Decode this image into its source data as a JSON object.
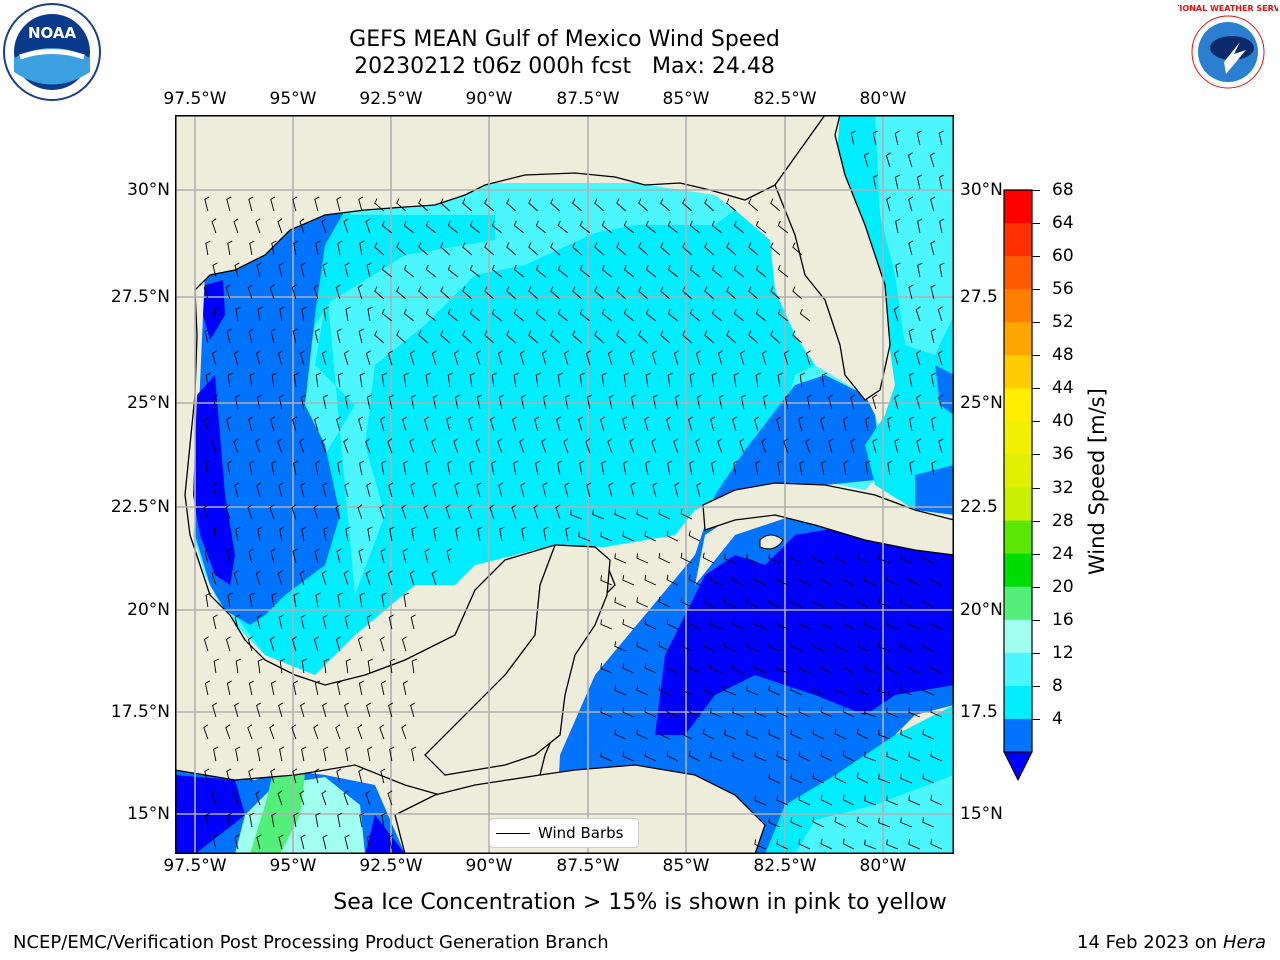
{
  "title": {
    "line1": "GEFS MEAN Gulf of Mexico Wind Speed",
    "line2": "20230212 t06z 000h fcst   Max: 24.48"
  },
  "axes": {
    "lon_labels": [
      "97.5°W",
      "95°W",
      "92.5°W",
      "90°W",
      "87.5°W",
      "85°W",
      "82.5°W",
      "80°W"
    ],
    "lat_labels_left": [
      "30°N",
      "27.5°N",
      "25°N",
      "22.5°N",
      "20°N",
      "17.5°N",
      "15°N"
    ],
    "lat_labels_right": [
      "30°N",
      "27.5",
      "25°N",
      "22.5",
      "20°N",
      "17.5",
      "15°N"
    ]
  },
  "colorbar": {
    "title": "Wind Speed [m/s]",
    "levels": [
      "68",
      "64",
      "60",
      "56",
      "52",
      "48",
      "44",
      "40",
      "36",
      "32",
      "28",
      "24",
      "20",
      "16",
      "12",
      "8",
      "4"
    ],
    "colors": [
      "#ff0000",
      "#ff3000",
      "#ff5a00",
      "#ff8000",
      "#ffa500",
      "#ffcc00",
      "#ffee00",
      "#f0f000",
      "#e0f000",
      "#c8f000",
      "#5be800",
      "#00dd00",
      "#52f07a",
      "#a0ffee",
      "#4cf6ff",
      "#00ecff",
      "#0073ff"
    ],
    "under_color": "#0000ff"
  },
  "legend": {
    "label": "Wind Barbs"
  },
  "caption": "Sea Ice Concentration > 15% is shown in pink to yellow",
  "footer": {
    "left": "NCEP/EMC/Verification Post Processing Product Generation Branch",
    "right_prefix": "14 Feb 2023 on",
    "right_italic": "Hera"
  },
  "logos": {
    "left": "NOAA",
    "right": "NATIONAL WEATHER SERVICE"
  },
  "colors": {
    "land": "#eeecdb",
    "grid": "#b0b0b0",
    "ws_4_8": "#0073ff",
    "ws_8_12": "#00ecff",
    "ws_12_16": "#4cf6ff",
    "ws_16_20": "#a0ffee",
    "ws_20_24": "#52f07a",
    "ws_under_4": "#0000ff"
  }
}
